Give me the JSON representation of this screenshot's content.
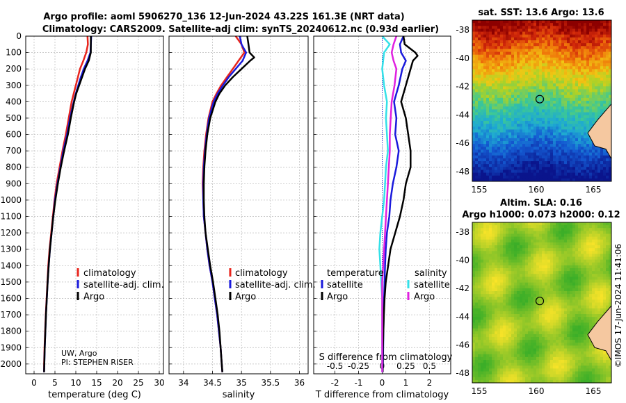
{
  "title": {
    "line1": "Argo profile: aoml 5906270_136 12-Jun-2024 43.22S 161.3E (NRT data)",
    "line2": "Climatology: CARS2009. Satellite-adj clim: synTS_20240612.nc (0.93d earlier)"
  },
  "colors": {
    "climatology": "#e8241c",
    "satellite": "#1a1adc",
    "argo": "#000000",
    "s_sat": "#33e0e8",
    "s_argo": "#e020e0"
  },
  "chart_data": [
    {
      "type": "line",
      "name": "temperature",
      "xlabel": "temperature (deg C)",
      "ylabel": "",
      "xlim": [
        -2,
        31
      ],
      "ylim": [
        2060,
        0
      ],
      "xticks": [
        0,
        5,
        10,
        15,
        20,
        25,
        30
      ],
      "yticks": [
        0,
        100,
        200,
        300,
        400,
        500,
        600,
        700,
        800,
        900,
        1000,
        1100,
        1200,
        1300,
        1400,
        1500,
        1600,
        1700,
        1800,
        1900,
        2000
      ],
      "grid": true,
      "legend": [
        "climatology",
        "satellite-adj. clim.",
        "Argo"
      ],
      "series": [
        {
          "name": "climatology",
          "color": "#e8241c",
          "depth": [
            0,
            50,
            100,
            150,
            200,
            250,
            300,
            350,
            400,
            500,
            600,
            700,
            800,
            900,
            1000,
            1100,
            1200,
            1300,
            1400,
            1500,
            1600,
            1700,
            1800,
            1900,
            2000,
            2050
          ],
          "values": [
            12.8,
            12.9,
            12.5,
            11.8,
            11.0,
            10.5,
            10.0,
            9.5,
            9.0,
            8.3,
            7.6,
            6.8,
            6.1,
            5.4,
            4.9,
            4.5,
            4.1,
            3.7,
            3.4,
            3.2,
            3.0,
            2.8,
            2.65,
            2.5,
            2.4,
            2.4
          ]
        },
        {
          "name": "satellite-adj. clim.",
          "color": "#1a1adc",
          "depth": [
            0,
            50,
            100,
            150,
            200,
            250,
            300,
            350,
            400,
            500,
            600,
            700,
            800,
            900,
            1000,
            1100,
            1200,
            1300,
            1400,
            1500,
            1600,
            1700,
            1800,
            1900,
            2000,
            2050
          ],
          "values": [
            13.7,
            13.6,
            13.5,
            12.8,
            11.9,
            11.2,
            10.6,
            10.0,
            9.5,
            8.6,
            7.9,
            7.0,
            6.3,
            5.6,
            5.0,
            4.6,
            4.2,
            3.8,
            3.5,
            3.25,
            3.05,
            2.85,
            2.7,
            2.55,
            2.45,
            2.4
          ]
        },
        {
          "name": "Argo",
          "color": "#000000",
          "depth": [
            0,
            50,
            100,
            150,
            200,
            250,
            300,
            350,
            400,
            500,
            600,
            700,
            800,
            900,
            1000,
            1100,
            1200,
            1300,
            1400,
            1500,
            1600,
            1700,
            1800,
            1900,
            2000,
            2050
          ],
          "values": [
            13.6,
            13.6,
            13.6,
            13.1,
            12.2,
            11.5,
            10.8,
            10.1,
            9.6,
            8.8,
            8.1,
            7.2,
            6.4,
            5.7,
            5.1,
            4.6,
            4.2,
            3.8,
            3.5,
            3.25,
            3.05,
            2.85,
            2.7,
            2.55,
            2.45,
            2.4
          ]
        }
      ]
    },
    {
      "type": "line",
      "name": "salinity",
      "xlabel": "salinity",
      "xlim": [
        33.75,
        36.15
      ],
      "ylim": [
        2060,
        0
      ],
      "xticks": [
        34,
        34.5,
        35,
        35.5,
        36
      ],
      "grid": true,
      "legend": [
        "climatology",
        "satellite-adj. clim.",
        "Argo"
      ],
      "series": [
        {
          "name": "climatology",
          "color": "#e8241c",
          "depth": [
            0,
            50,
            100,
            150,
            200,
            250,
            300,
            350,
            400,
            500,
            600,
            700,
            800,
            900,
            1000,
            1100,
            1200,
            1300,
            1400,
            1500,
            1600,
            1700,
            1800,
            1900,
            2000,
            2050
          ],
          "values": [
            34.9,
            35.0,
            35.05,
            34.95,
            34.85,
            34.75,
            34.65,
            34.57,
            34.5,
            34.43,
            34.39,
            34.36,
            34.34,
            34.33,
            34.34,
            34.35,
            34.38,
            34.41,
            34.45,
            34.5,
            34.54,
            34.58,
            34.61,
            34.64,
            34.66,
            34.67
          ]
        },
        {
          "name": "satellite-adj. clim.",
          "color": "#1a1adc",
          "depth": [
            0,
            50,
            100,
            150,
            200,
            250,
            300,
            350,
            400,
            500,
            600,
            700,
            800,
            900,
            1000,
            1100,
            1200,
            1300,
            1400,
            1500,
            1600,
            1700,
            1800,
            1900,
            2000,
            2050
          ],
          "values": [
            34.97,
            35.0,
            35.08,
            35.02,
            34.9,
            34.78,
            34.68,
            34.59,
            34.52,
            34.44,
            34.4,
            34.37,
            34.35,
            34.34,
            34.34,
            34.35,
            34.38,
            34.41,
            34.45,
            34.5,
            34.54,
            34.58,
            34.61,
            34.64,
            34.66,
            34.67
          ]
        },
        {
          "name": "Argo",
          "color": "#000000",
          "depth": [
            0,
            50,
            100,
            130,
            150,
            200,
            250,
            300,
            350,
            400,
            500,
            600,
            700,
            800,
            900,
            1000,
            1100,
            1200,
            1300,
            1400,
            1500,
            1600,
            1700,
            1800,
            1900,
            2000,
            2050
          ],
          "values": [
            35.1,
            35.12,
            35.14,
            35.22,
            35.15,
            35.0,
            34.85,
            34.72,
            34.62,
            34.55,
            34.46,
            34.41,
            34.38,
            34.36,
            34.35,
            34.35,
            34.36,
            34.38,
            34.42,
            34.46,
            34.51,
            34.55,
            34.59,
            34.62,
            34.64,
            34.66,
            34.67
          ]
        }
      ]
    },
    {
      "type": "line",
      "name": "difference",
      "xlabel": "T difference from climatology",
      "top_xlabel": "S difference from climatology",
      "xlim": [
        -2.9,
        2.9
      ],
      "ylim": [
        2060,
        0
      ],
      "xticks": [
        -2,
        -1,
        0,
        1,
        2
      ],
      "top_xticks": [
        -0.5,
        -0.25,
        0,
        0.25,
        0.5
      ],
      "grid": true,
      "legend_left_title": "temperature",
      "legend_right_title": "salinity",
      "legend_left": [
        "satellite",
        "Argo"
      ],
      "legend_right": [
        "satellite",
        "Argo"
      ],
      "series": [
        {
          "name": "T satellite",
          "color": "#1a1adc",
          "depth": [
            0,
            50,
            100,
            150,
            200,
            300,
            400,
            500,
            600,
            700,
            800,
            900,
            1000,
            1100,
            1200,
            1300,
            1400,
            1500,
            1600,
            1700,
            1800,
            1900,
            2000,
            2050
          ],
          "values": [
            0.9,
            0.75,
            0.8,
            1.0,
            0.85,
            0.7,
            0.5,
            0.6,
            0.55,
            0.7,
            0.6,
            0.45,
            0.35,
            0.3,
            0.2,
            0.15,
            0.12,
            0.1,
            0.08,
            0.06,
            0.05,
            0.04,
            0.03,
            0.02
          ]
        },
        {
          "name": "T Argo",
          "color": "#000000",
          "depth": [
            0,
            50,
            100,
            120,
            150,
            200,
            300,
            400,
            500,
            600,
            700,
            800,
            900,
            1000,
            1100,
            1200,
            1300,
            1400,
            1500,
            1600,
            1700,
            1800,
            1900,
            2000,
            2050
          ],
          "values": [
            0.9,
            0.95,
            1.4,
            1.5,
            1.3,
            1.2,
            1.0,
            0.8,
            1.0,
            1.1,
            1.2,
            1.2,
            1.0,
            0.9,
            0.75,
            0.55,
            0.35,
            0.25,
            0.15,
            0.1,
            0.07,
            0.05,
            0.03,
            0.02,
            0.02
          ]
        },
        {
          "name": "S satellite",
          "color": "#33e0e8",
          "depth": [
            0,
            50,
            100,
            200,
            300,
            400,
            500,
            600,
            700,
            800,
            900,
            1000,
            1100,
            1200,
            1300,
            1400,
            1500,
            1600,
            1700,
            1800,
            1900,
            2000,
            2050
          ],
          "values": [
            0.0,
            0.08,
            0.02,
            0.0,
            0.02,
            0.05,
            0.04,
            0.05,
            0.06,
            0.04,
            0.03,
            0.02,
            0.0,
            -0.02,
            -0.03,
            -0.02,
            -0.01,
            0.0,
            0.0,
            0.0,
            0.0,
            0.0,
            0.0
          ]
        },
        {
          "name": "S Argo",
          "color": "#e020e0",
          "depth": [
            0,
            50,
            100,
            150,
            200,
            300,
            400,
            500,
            600,
            700,
            800,
            900,
            1000,
            1100,
            1200,
            1300,
            1400,
            1500,
            1600,
            1700,
            1800,
            1900,
            2000,
            2050
          ],
          "values": [
            0.15,
            0.12,
            0.1,
            0.12,
            0.15,
            0.13,
            0.1,
            0.09,
            0.08,
            0.08,
            0.07,
            0.06,
            0.05,
            0.04,
            0.03,
            0.02,
            0.01,
            0.0,
            0.0,
            0.0,
            0.0,
            0.0,
            0.0,
            0.0
          ]
        }
      ]
    }
  ],
  "maps": {
    "sst": {
      "title": "sat. SST: 13.6 Argo: 13.6",
      "yticks": [
        "-38",
        "-40",
        "-42",
        "-44",
        "-46",
        "-48"
      ],
      "xticks": [
        "155",
        "160",
        "165"
      ]
    },
    "sla": {
      "title_line1": "Altim. SLA: 0.16",
      "title_line2": "Argo h1000: 0.073 h2000: 0.12",
      "yticks": [
        "-38",
        "-40",
        "-42",
        "-44",
        "-46",
        "-48"
      ],
      "xticks": [
        "155",
        "160",
        "165"
      ]
    }
  },
  "annotations": {
    "source_line1": "UW, Argo",
    "source_line2": "PI: STEPHEN RISER",
    "watermark": "©IMOS 17-Jun-2024 11:41:06"
  }
}
